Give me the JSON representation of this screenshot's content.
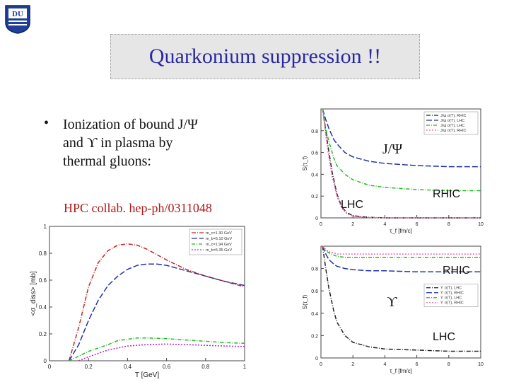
{
  "slide": {
    "title": "Quarkonium suppression !!",
    "bullet_marker": "•",
    "bullet_lines": [
      "Ionization of bound J/Ψ",
      "and ϒ in plasma by",
      "thermal gluons:"
    ],
    "citation": "HPC collab. hep-ph/0311048",
    "logo_letters": "DU"
  },
  "colors": {
    "title": "#2a2aa0",
    "citation": "#b01818",
    "red": "#cc2222",
    "blue": "#2233aa",
    "green": "#22bb22",
    "magenta": "#bb22cc",
    "black": "#222222",
    "pink": "#ee66aa"
  },
  "chart_data": [
    {
      "type": "line",
      "xlabel": "T [GeV]",
      "ylabel": "<σ_diss> [mb]",
      "xlim": [
        0,
        1
      ],
      "ylim": [
        0,
        1
      ],
      "xticks": [
        0,
        0.2,
        0.4,
        0.6,
        0.8,
        1
      ],
      "yticks": [
        0,
        0.2,
        0.4,
        0.6,
        0.8,
        1
      ],
      "tick_labels_x": [
        "0",
        "0.2",
        "0.4",
        "0.6",
        "0.8",
        "1"
      ],
      "tick_labels_y": [
        "0",
        "0.2",
        "0.4",
        "0.6",
        "0.8",
        "1"
      ],
      "legend_position": "top-right",
      "series": [
        {
          "name": "m_c=1.30 GeV",
          "color": "#cc2222",
          "dash": "6,2,1,2",
          "x": [
            0.1,
            0.15,
            0.2,
            0.25,
            0.3,
            0.35,
            0.4,
            0.45,
            0.5,
            0.6,
            0.7,
            0.8,
            0.9,
            1.0
          ],
          "y": [
            0.0,
            0.25,
            0.55,
            0.73,
            0.82,
            0.86,
            0.87,
            0.86,
            0.83,
            0.75,
            0.68,
            0.63,
            0.59,
            0.55
          ]
        },
        {
          "name": "m_b=5.10 GeV",
          "color": "#2233aa",
          "dash": "8,3",
          "x": [
            0.1,
            0.15,
            0.2,
            0.25,
            0.3,
            0.35,
            0.4,
            0.45,
            0.5,
            0.55,
            0.6,
            0.7,
            0.8,
            0.9,
            1.0
          ],
          "y": [
            0.0,
            0.12,
            0.3,
            0.45,
            0.56,
            0.63,
            0.68,
            0.71,
            0.72,
            0.72,
            0.71,
            0.67,
            0.63,
            0.59,
            0.56
          ]
        },
        {
          "name": "m_c=1.94 GeV",
          "color": "#22bb22",
          "dash": "5,2,1,2",
          "x": [
            0.1,
            0.2,
            0.3,
            0.35,
            0.4,
            0.45,
            0.5,
            0.6,
            0.7,
            0.8,
            0.9,
            1.0
          ],
          "y": [
            0.0,
            0.07,
            0.12,
            0.15,
            0.16,
            0.17,
            0.17,
            0.165,
            0.155,
            0.145,
            0.135,
            0.13
          ]
        },
        {
          "name": "m_b=5.35 GeV",
          "color": "#bb22cc",
          "dash": "2,2",
          "x": [
            0.15,
            0.2,
            0.3,
            0.4,
            0.5,
            0.6,
            0.7,
            0.8,
            0.9,
            1.0
          ],
          "y": [
            0.0,
            0.03,
            0.08,
            0.11,
            0.12,
            0.125,
            0.12,
            0.115,
            0.11,
            0.105
          ]
        }
      ]
    },
    {
      "type": "line",
      "xlabel": "τ_f [fm/c]",
      "ylabel": "S(τ_f)",
      "xlim": [
        0,
        10
      ],
      "ylim": [
        0,
        1
      ],
      "xticks": [
        0,
        2,
        4,
        6,
        8,
        10
      ],
      "yticks": [
        0,
        0.2,
        0.4,
        0.6,
        0.8
      ],
      "tick_labels_x": [
        "0",
        "2",
        "4",
        "6",
        "8",
        "10"
      ],
      "tick_labels_y": [
        "0",
        "0.2",
        "0.4",
        "0.6",
        "0.8"
      ],
      "legend_position": "top-right",
      "annotations": [
        "J/Ψ",
        "LHC",
        "RHIC"
      ],
      "series": [
        {
          "name": "J/ψ σ(T), RHIC",
          "color": "#222222",
          "dash": "6,2,1,2",
          "x": [
            0.1,
            0.4,
            0.7,
            1,
            1.3,
            1.6,
            2,
            3,
            4,
            6,
            8,
            10
          ],
          "y": [
            1.0,
            0.7,
            0.42,
            0.22,
            0.1,
            0.05,
            0.02,
            0.005,
            0.0,
            0.0,
            0.0,
            0.0
          ]
        },
        {
          "name": "J/ψ σ(T), LHC",
          "color": "#2233aa",
          "dash": "8,3",
          "x": [
            0.1,
            0.3,
            0.5,
            0.8,
            1,
            1.5,
            2,
            3,
            4,
            6,
            8,
            10
          ],
          "y": [
            1.0,
            0.9,
            0.82,
            0.72,
            0.68,
            0.6,
            0.56,
            0.52,
            0.5,
            0.48,
            0.47,
            0.47
          ]
        },
        {
          "name": "J/ψ σ(T), LHC",
          "color": "#22bb22",
          "dash": "5,2,1,2",
          "x": [
            0.1,
            0.3,
            0.5,
            0.8,
            1,
            1.5,
            2,
            3,
            4,
            6,
            8,
            10
          ],
          "y": [
            1.0,
            0.82,
            0.7,
            0.55,
            0.48,
            0.4,
            0.35,
            0.3,
            0.28,
            0.26,
            0.25,
            0.25
          ]
        },
        {
          "name": "J/ψ σ(T), RHIC",
          "color": "#ee66aa",
          "dash": "2,2",
          "x": [
            0.1,
            0.4,
            0.7,
            1,
            1.3,
            1.6,
            2,
            3,
            4,
            6,
            8,
            10
          ],
          "y": [
            1.0,
            0.65,
            0.38,
            0.2,
            0.09,
            0.04,
            0.015,
            0.003,
            0.0,
            0.0,
            0.0,
            0.0
          ]
        }
      ]
    },
    {
      "type": "line",
      "xlabel": "τ_f [fm/c]",
      "ylabel": "S(τ_f)",
      "xlim": [
        0,
        10
      ],
      "ylim": [
        0,
        1
      ],
      "xticks": [
        0,
        2,
        4,
        6,
        8,
        10
      ],
      "yticks": [
        0,
        0.2,
        0.4,
        0.6,
        0.8
      ],
      "tick_labels_x": [
        "0",
        "2",
        "4",
        "6",
        "8",
        "10"
      ],
      "tick_labels_y": [
        "0",
        "0.2",
        "0.4",
        "0.6",
        "0.8"
      ],
      "legend_position": "bottom-right",
      "annotations": [
        "RHIC",
        "ϒ",
        "LHC"
      ],
      "series": [
        {
          "name": "ϒ σ(T), LHC",
          "color": "#222222",
          "dash": "6,2,1,2",
          "x": [
            0.1,
            0.3,
            0.5,
            0.8,
            1,
            1.5,
            2,
            3,
            4,
            6,
            8,
            10
          ],
          "y": [
            1.0,
            0.8,
            0.62,
            0.42,
            0.32,
            0.2,
            0.14,
            0.1,
            0.08,
            0.07,
            0.06,
            0.06
          ]
        },
        {
          "name": "ϒ σ(T), RHIC",
          "color": "#2233aa",
          "dash": "8,3",
          "x": [
            0.1,
            0.3,
            0.5,
            0.8,
            1,
            1.5,
            2,
            3,
            4,
            6,
            8,
            10
          ],
          "y": [
            1.0,
            0.93,
            0.88,
            0.84,
            0.82,
            0.8,
            0.79,
            0.78,
            0.78,
            0.77,
            0.77,
            0.77
          ]
        },
        {
          "name": "ϒ σ(T), LHC",
          "color": "#22bb22",
          "dash": "5,2,1,2",
          "x": [
            0.1,
            0.3,
            0.5,
            0.8,
            1,
            1.5,
            2,
            3,
            4,
            6,
            8,
            10
          ],
          "y": [
            1.0,
            0.96,
            0.94,
            0.92,
            0.91,
            0.9,
            0.9,
            0.9,
            0.9,
            0.9,
            0.9,
            0.9
          ]
        },
        {
          "name": "ϒ σ(T), RHIC",
          "color": "#ee66aa",
          "dash": "2,2",
          "x": [
            0.1,
            0.3,
            0.5,
            0.8,
            1,
            1.5,
            2,
            3,
            4,
            6,
            8,
            10
          ],
          "y": [
            1.0,
            0.97,
            0.95,
            0.94,
            0.93,
            0.93,
            0.93,
            0.93,
            0.93,
            0.93,
            0.93,
            0.93
          ]
        }
      ]
    }
  ]
}
